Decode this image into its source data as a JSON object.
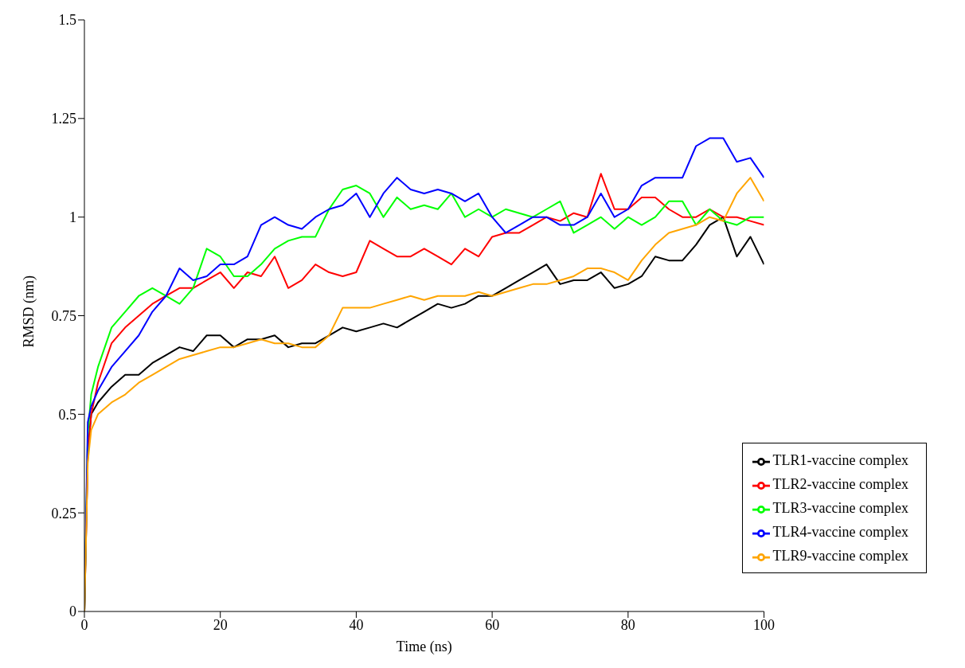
{
  "chart_data": {
    "type": "line",
    "xlabel": "Time (ns)",
    "ylabel": "RMSD (nm)",
    "x": [
      0,
      0.5,
      1,
      2,
      4,
      6,
      8,
      10,
      12,
      14,
      16,
      18,
      20,
      22,
      24,
      26,
      28,
      30,
      32,
      34,
      36,
      38,
      40,
      42,
      44,
      46,
      48,
      50,
      52,
      54,
      56,
      58,
      60,
      62,
      64,
      66,
      68,
      70,
      72,
      74,
      76,
      78,
      80,
      82,
      84,
      86,
      88,
      90,
      92,
      94,
      96,
      98,
      100
    ],
    "series": [
      {
        "name": "TLR1-vaccine complex",
        "color": "#000000",
        "values": [
          0,
          0.4,
          0.5,
          0.53,
          0.57,
          0.6,
          0.6,
          0.63,
          0.65,
          0.67,
          0.66,
          0.7,
          0.7,
          0.67,
          0.69,
          0.69,
          0.7,
          0.67,
          0.68,
          0.68,
          0.7,
          0.72,
          0.71,
          0.72,
          0.73,
          0.72,
          0.74,
          0.76,
          0.78,
          0.77,
          0.78,
          0.8,
          0.8,
          0.82,
          0.84,
          0.86,
          0.88,
          0.83,
          0.84,
          0.84,
          0.86,
          0.82,
          0.83,
          0.85,
          0.9,
          0.89,
          0.89,
          0.93,
          0.98,
          1.0,
          0.9,
          0.95,
          0.88
        ]
      },
      {
        "name": "TLR2-vaccine complex",
        "color": "#ff0000",
        "values": [
          0,
          0.4,
          0.5,
          0.58,
          0.68,
          0.72,
          0.75,
          0.78,
          0.8,
          0.82,
          0.82,
          0.84,
          0.86,
          0.82,
          0.86,
          0.85,
          0.9,
          0.82,
          0.84,
          0.88,
          0.86,
          0.85,
          0.86,
          0.94,
          0.92,
          0.9,
          0.9,
          0.92,
          0.9,
          0.88,
          0.92,
          0.9,
          0.95,
          0.96,
          0.96,
          0.98,
          1.0,
          0.99,
          1.01,
          1.0,
          1.11,
          1.02,
          1.02,
          1.05,
          1.05,
          1.02,
          1.0,
          1.0,
          1.02,
          1.0,
          1.0,
          0.99,
          0.98
        ]
      },
      {
        "name": "TLR3-vaccine complex",
        "color": "#00ff00",
        "values": [
          0,
          0.45,
          0.55,
          0.62,
          0.72,
          0.76,
          0.8,
          0.82,
          0.8,
          0.78,
          0.82,
          0.92,
          0.9,
          0.85,
          0.85,
          0.88,
          0.92,
          0.94,
          0.95,
          0.95,
          1.02,
          1.07,
          1.08,
          1.06,
          1.0,
          1.05,
          1.02,
          1.03,
          1.02,
          1.06,
          1.0,
          1.02,
          1.0,
          1.02,
          1.01,
          1.0,
          1.02,
          1.04,
          0.96,
          0.98,
          1.0,
          0.97,
          1.0,
          0.98,
          1.0,
          1.04,
          1.04,
          0.98,
          1.02,
          0.99,
          0.98,
          1.0,
          1.0
        ]
      },
      {
        "name": "TLR4-vaccine complex",
        "color": "#0000ff",
        "values": [
          0,
          0.48,
          0.52,
          0.56,
          0.62,
          0.66,
          0.7,
          0.76,
          0.8,
          0.87,
          0.84,
          0.85,
          0.88,
          0.88,
          0.9,
          0.98,
          1.0,
          0.98,
          0.97,
          1.0,
          1.02,
          1.03,
          1.06,
          1.0,
          1.06,
          1.1,
          1.07,
          1.06,
          1.07,
          1.06,
          1.04,
          1.06,
          1.0,
          0.96,
          0.98,
          1.0,
          1.0,
          0.98,
          0.98,
          1.0,
          1.06,
          1.0,
          1.02,
          1.08,
          1.1,
          1.1,
          1.1,
          1.18,
          1.2,
          1.2,
          1.14,
          1.15,
          1.1
        ]
      },
      {
        "name": "TLR9-vaccine complex",
        "color": "#ffa500",
        "values": [
          0,
          0.38,
          0.46,
          0.5,
          0.53,
          0.55,
          0.58,
          0.6,
          0.62,
          0.64,
          0.65,
          0.66,
          0.67,
          0.67,
          0.68,
          0.69,
          0.68,
          0.68,
          0.67,
          0.67,
          0.7,
          0.77,
          0.77,
          0.77,
          0.78,
          0.79,
          0.8,
          0.79,
          0.8,
          0.8,
          0.8,
          0.81,
          0.8,
          0.81,
          0.82,
          0.83,
          0.83,
          0.84,
          0.85,
          0.87,
          0.87,
          0.86,
          0.84,
          0.89,
          0.93,
          0.96,
          0.97,
          0.98,
          1.0,
          0.99,
          1.06,
          1.1,
          1.04
        ]
      }
    ],
    "xlim": [
      0,
      100
    ],
    "xticks": [
      0,
      20,
      40,
      60,
      80,
      100
    ],
    "ylim": [
      0,
      1.5
    ],
    "yticks": [
      0,
      0.25,
      0.5,
      0.75,
      1,
      1.25,
      1.5
    ],
    "legend": "bottom right",
    "grid": false,
    "marker": "none",
    "line_style": "solid"
  }
}
